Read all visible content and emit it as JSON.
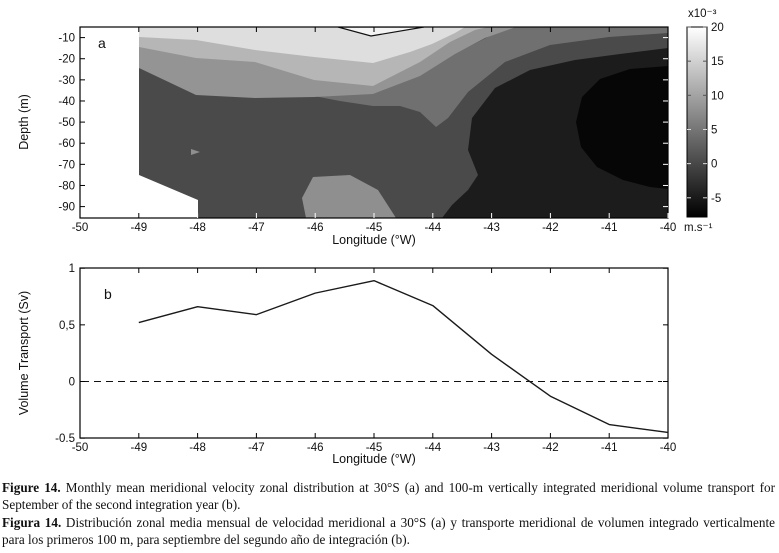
{
  "figure": {
    "panel_a": {
      "letter": "a",
      "xlabel": "Longitude (°W)",
      "ylabel": "Depth (m)",
      "x_tick_values": [
        -50,
        -49,
        -48,
        -47,
        -46,
        -45,
        -44,
        -43,
        -42,
        -41,
        -40
      ],
      "x_tick_labels": [
        "-50",
        "-49",
        "-48",
        "-47",
        "-46",
        "-45",
        "-44",
        "-43",
        "-42",
        "-41",
        "-40"
      ],
      "y_tick_values": [
        -10,
        -20,
        -30,
        -40,
        -50,
        -60,
        -70,
        -80,
        -90
      ],
      "y_tick_labels": [
        "-10",
        "-20",
        "-30",
        "-40",
        "-50",
        "-60",
        "-70",
        "-80",
        "-90"
      ],
      "colorbar": {
        "title": "x10⁻³",
        "unit": "m.s⁻¹",
        "tick_values": [
          20,
          15,
          10,
          5,
          0,
          -5
        ],
        "tick_labels": [
          "20",
          "15",
          "10",
          "5",
          "0",
          "-5"
        ],
        "top_color": "#ffffff",
        "bottom_color": "#000000"
      }
    },
    "panel_b": {
      "letter": "b",
      "xlabel": "Longitude (°W)",
      "ylabel": "Volume Transport (Sv)",
      "x_tick_values": [
        -50,
        -49,
        -48,
        -47,
        -46,
        -45,
        -44,
        -43,
        -42,
        -41,
        -40
      ],
      "x_tick_labels": [
        "-50",
        "-49",
        "-48",
        "-47",
        "-46",
        "-45",
        "-44",
        "-43",
        "-42",
        "-41",
        "-40"
      ],
      "y_ticks": [
        {
          "value": 1,
          "label": "1"
        },
        {
          "value": 0.5,
          "label": "0,5"
        },
        {
          "value": 0,
          "label": "0"
        },
        {
          "value": -0.5,
          "label": "-0.5"
        }
      ]
    }
  },
  "captions": {
    "en_label": "Figure 14.",
    "en_text": " Monthly mean meridional velocity zonal distribution at 30°S (a) and 100-m vertically integrated meridional volume transport for September of the second integration year (b).",
    "es_label": "Figura 14.",
    "es_text": " Distribución zonal media mensual de velocidad meridional a 30°S (a) y transporte meridional de volumen integrado verticalmente para los primeros 100 m, para septiembre del segundo año de integración (b)."
  },
  "chart_data": [
    {
      "type": "heatmap",
      "subtype": "filled-contour-section",
      "title": "",
      "xlabel": "Longitude (°W)",
      "ylabel": "Depth (m)",
      "x_range": [
        -50,
        -40
      ],
      "y_range": [
        -95,
        -5
      ],
      "x_ticks": [
        -50,
        -49,
        -48,
        -47,
        -46,
        -45,
        -44,
        -43,
        -42,
        -41,
        -40
      ],
      "y_ticks": [
        -10,
        -20,
        -30,
        -40,
        -50,
        -60,
        -70,
        -80,
        -90
      ],
      "colorbar_title": "x10⁻³",
      "colorbar_unit": "m.s⁻¹",
      "colorbar_ticks": [
        20,
        15,
        10,
        5,
        0,
        -5
      ],
      "colorbar_range": [
        -7.5,
        20
      ],
      "contour_levels_x1e3": [
        -5,
        -2.5,
        0,
        2.5,
        5,
        7.5,
        10,
        12.5,
        15,
        17.5,
        20
      ],
      "grayscale_mapping": "white = +20e-3 m/s, black = < -5e-3 m/s",
      "features": [
        "surface maximum (>20e-3 m/s) near 45°W above ~10 m with 20-level contour line notch",
        "velocity decreases with depth; broad ~0 to 2.5e-3 band fills interior west of 43.5°W",
        "small local maximum patch (~10e-3) near 45.5-46°W below 75 m",
        "tiny local maximum speck near 48°W at ~65 m",
        "negative core (< -5e-3, black) centered 40-41.5°W between ~20 and 85 m",
        "no data west of 49°W; no data below ~75 m between 49°W and 48°W"
      ]
    },
    {
      "type": "line",
      "title": "",
      "xlabel": "Longitude (°W)",
      "ylabel": "Volume Transport (Sv)",
      "x": [
        -49,
        -48,
        -47,
        -46,
        -45,
        -44,
        -43,
        -42,
        -41,
        -40
      ],
      "values": [
        0.52,
        0.66,
        0.59,
        0.78,
        0.89,
        0.67,
        0.24,
        -0.13,
        -0.38,
        -0.45
      ],
      "xlim": [
        -50,
        -40
      ],
      "ylim": [
        -0.5,
        1
      ],
      "y_ticks": [
        1,
        0.5,
        0,
        -0.5
      ],
      "zero_line": "dashed",
      "grid": false,
      "legend": "none",
      "line_color": "#1a1a1a"
    }
  ]
}
